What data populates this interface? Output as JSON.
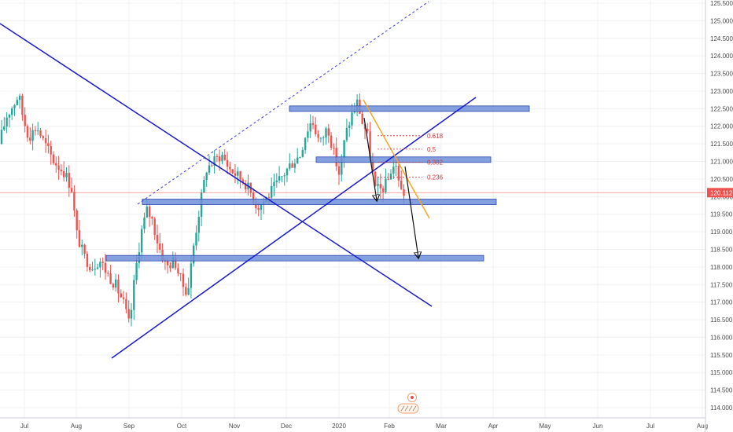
{
  "chart_data": {
    "type": "candlestick",
    "y_ticks": [
      "114.000",
      "114.500",
      "115.000",
      "115.500",
      "116.000",
      "116.500",
      "117.000",
      "117.500",
      "118.000",
      "118.500",
      "119.000",
      "119.500",
      "120.000",
      "120.500",
      "121.000",
      "121.500",
      "122.000",
      "122.500",
      "123.000",
      "123.500",
      "124.000",
      "124.500",
      "125.000",
      "125.500"
    ],
    "x_ticks": [
      "Jul",
      "Aug",
      "Sep",
      "Oct",
      "Nov",
      "Dec",
      "2020",
      "Feb",
      "Mar",
      "Apr",
      "May",
      "Jun",
      "Jul",
      "Aug"
    ],
    "ylim": [
      113.85,
      125.55
    ],
    "current_price": "120.112",
    "current_price_value": 120.112,
    "fib_levels": [
      {
        "label": "0.618",
        "value": 121.73
      },
      {
        "label": "0.5",
        "value": 121.35
      },
      {
        "label": "0.382",
        "value": 120.98
      },
      {
        "label": "0.236",
        "value": 120.55
      }
    ],
    "zones": [
      {
        "name": "zone-122-5",
        "value": 122.5
      },
      {
        "name": "zone-121",
        "value": 121.05
      },
      {
        "name": "zone-119-8",
        "value": 119.85
      },
      {
        "name": "zone-118-25",
        "value": 118.25
      }
    ],
    "colors": {
      "up": "#26a69a",
      "down": "#ef5350",
      "trendline": "#1a1acc",
      "channel_dashed": "#3a3ae0",
      "zone_fill": "#6f8fd8",
      "zone_stroke": "#2a48b0",
      "orange_line": "#f5a623",
      "arrow": "#111111",
      "fib": "#d0363a",
      "price_line": "#ef5350",
      "price_label_bg": "#ef5350"
    },
    "icons": [
      "event-flag-icon"
    ]
  }
}
